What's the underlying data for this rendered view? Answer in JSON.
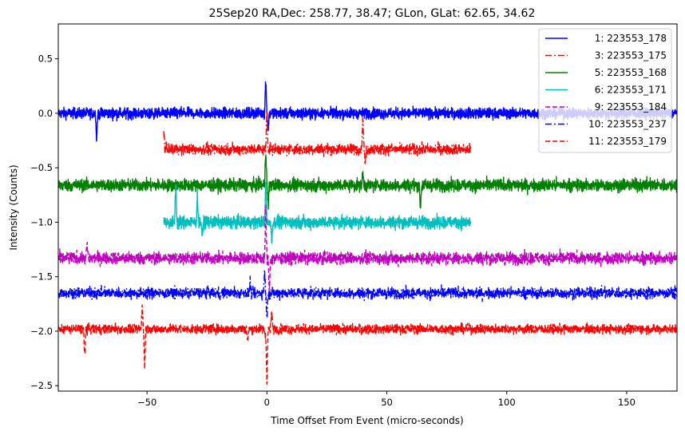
{
  "chart_data": {
    "type": "line",
    "title": "25Sep20 RA,Dec:  258.77,  38.47; GLon, GLat:   62.65,  34.62",
    "xlabel": "Time Offset From Event (micro-seconds)",
    "ylabel": "Intensity (Counts)",
    "xlim": [
      -87,
      171
    ],
    "ylim": [
      -2.55,
      0.82
    ],
    "xticks": [
      -50,
      0,
      50,
      100,
      150
    ],
    "xtick_labels": [
      "−50",
      "0",
      "50",
      "100",
      "150"
    ],
    "yticks": [
      0.5,
      0.0,
      -0.5,
      -1.0,
      -1.5,
      -2.0,
      -2.5
    ],
    "ytick_labels": [
      "0.5",
      "0.0",
      "−0.5",
      "−1.0",
      "−1.5",
      "−2.0",
      "−2.5"
    ],
    "legend_position": "top-right",
    "series": [
      {
        "name": "1: 223553_178",
        "color": "#0000ff",
        "linestyle": "solid",
        "offset": 0.0,
        "x_range": [
          -87,
          171
        ],
        "noise": 0.035,
        "spikes": [
          {
            "x": -71,
            "v": -0.22
          },
          {
            "x": -0.5,
            "v": 0.32
          },
          {
            "x": 0.5,
            "v": -0.15
          }
        ]
      },
      {
        "name": "3: 223553_175",
        "color": "#ff0000",
        "linestyle": "dashdot",
        "offset": -0.33,
        "x_range": [
          -43,
          85
        ],
        "noise": 0.035,
        "spikes": [
          {
            "x": -43,
            "v": -0.15
          },
          {
            "x": 0,
            "v": 0.05
          },
          {
            "x": 40,
            "v": -0.02
          },
          {
            "x": 41,
            "v": -0.48
          }
        ]
      },
      {
        "name": "5: 223553_168",
        "color": "#008000",
        "linestyle": "solid",
        "offset": -0.66,
        "x_range": [
          -87,
          171
        ],
        "noise": 0.04,
        "spikes": [
          {
            "x": -0.5,
            "v": -0.3
          },
          {
            "x": 0.5,
            "v": -0.85
          },
          {
            "x": 40,
            "v": -0.55
          },
          {
            "x": 64,
            "v": -0.88
          }
        ]
      },
      {
        "name": "6: 223553_171",
        "color": "#00bfbf",
        "linestyle": "solid",
        "offset": -1.0,
        "x_range": [
          -43,
          85
        ],
        "noise": 0.04,
        "spikes": [
          {
            "x": -38,
            "v": -0.62
          },
          {
            "x": -29,
            "v": -0.75
          },
          {
            "x": -27,
            "v": -1.15
          },
          {
            "x": -0.5,
            "v": -0.62
          },
          {
            "x": 2,
            "v": -1.18
          }
        ]
      },
      {
        "name": "9: 223553_184",
        "color": "#bf00bf",
        "linestyle": "dashed",
        "offset": -1.33,
        "x_range": [
          -87,
          171
        ],
        "noise": 0.04,
        "spikes": [
          {
            "x": -0.5,
            "v": -0.88
          },
          {
            "x": 1,
            "v": -1.7
          },
          {
            "x": -75,
            "v": -1.2
          }
        ]
      },
      {
        "name": "10: 223553_237",
        "color": "#0000ff",
        "linestyle": "dashdot",
        "offset": -1.65,
        "x_range": [
          -87,
          171
        ],
        "noise": 0.035,
        "spikes": [
          {
            "x": -1,
            "v": -1.45
          },
          {
            "x": 0,
            "v": -1.88
          },
          {
            "x": -7,
            "v": -1.55
          }
        ]
      },
      {
        "name": "11: 223553_179",
        "color": "#ff0000",
        "linestyle": "dashed",
        "offset": -1.98,
        "x_range": [
          -87,
          171
        ],
        "noise": 0.03,
        "spikes": [
          {
            "x": -76,
            "v": -2.26
          },
          {
            "x": -52,
            "v": -1.76
          },
          {
            "x": -51,
            "v": -2.32
          },
          {
            "x": -8,
            "v": -2.1
          },
          {
            "x": -0.5,
            "v": -2.05
          },
          {
            "x": 0,
            "v": -2.45
          },
          {
            "x": 2,
            "v": -1.82
          }
        ]
      }
    ]
  }
}
